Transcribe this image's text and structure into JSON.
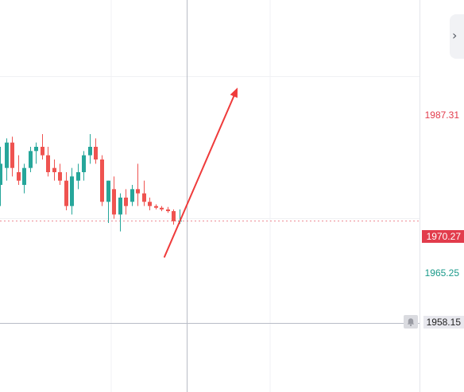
{
  "colors": {
    "up": "#26a69a",
    "down": "#ef5350",
    "arrow": "#ef3b3b",
    "current_price_bg": "#e23c4c",
    "high_label": "#e23c4c",
    "low_label": "#1a9a8a"
  },
  "price_scale": {
    "high_label": "1987.31",
    "current_price": "1970.27",
    "low_label": "1965.25",
    "crosshair_price": "1958.15"
  },
  "sidebar_toggle": {
    "icon": "chevron-right-icon",
    "glyph": "›"
  },
  "alarm_icon": "bell-icon",
  "chart_data": {
    "type": "candlestick",
    "ylim": [
      1952.0,
      1994.0
    ],
    "current_price": 1970.27,
    "crosshair_price": 1958.15,
    "arrow": {
      "from": 1966.0,
      "to": 1986.0
    },
    "candles": [
      {
        "o": 1974.5,
        "h": 1979.0,
        "l": 1972.0,
        "c": 1977.0
      },
      {
        "o": 1976.5,
        "h": 1980.0,
        "l": 1975.0,
        "c": 1979.5
      },
      {
        "o": 1979.5,
        "h": 1980.2,
        "l": 1975.5,
        "c": 1976.5
      },
      {
        "o": 1976.0,
        "h": 1978.0,
        "l": 1974.5,
        "c": 1975.0
      },
      {
        "o": 1974.5,
        "h": 1977.0,
        "l": 1973.5,
        "c": 1976.5
      },
      {
        "o": 1976.5,
        "h": 1979.0,
        "l": 1976.0,
        "c": 1978.5
      },
      {
        "o": 1978.5,
        "h": 1979.5,
        "l": 1977.0,
        "c": 1979.0
      },
      {
        "o": 1979.0,
        "h": 1980.5,
        "l": 1977.5,
        "c": 1978.0
      },
      {
        "o": 1978.0,
        "h": 1979.0,
        "l": 1975.5,
        "c": 1976.0
      },
      {
        "o": 1976.5,
        "h": 1977.5,
        "l": 1975.0,
        "c": 1976.0
      },
      {
        "o": 1976.0,
        "h": 1977.0,
        "l": 1974.5,
        "c": 1975.0
      },
      {
        "o": 1975.0,
        "h": 1976.0,
        "l": 1971.5,
        "c": 1972.0
      },
      {
        "o": 1972.0,
        "h": 1976.5,
        "l": 1971.0,
        "c": 1975.5
      },
      {
        "o": 1975.0,
        "h": 1977.0,
        "l": 1974.0,
        "c": 1976.0
      },
      {
        "o": 1976.0,
        "h": 1978.5,
        "l": 1975.0,
        "c": 1978.0
      },
      {
        "o": 1978.0,
        "h": 1980.5,
        "l": 1977.0,
        "c": 1979.0
      },
      {
        "o": 1979.0,
        "h": 1980.0,
        "l": 1977.0,
        "c": 1977.5
      },
      {
        "o": 1977.5,
        "h": 1978.0,
        "l": 1972.0,
        "c": 1972.5
      },
      {
        "o": 1972.5,
        "h": 1975.0,
        "l": 1970.0,
        "c": 1975.0
      },
      {
        "o": 1974.0,
        "h": 1975.5,
        "l": 1970.5,
        "c": 1971.0
      },
      {
        "o": 1971.0,
        "h": 1973.5,
        "l": 1969.0,
        "c": 1973.0
      },
      {
        "o": 1973.0,
        "h": 1974.0,
        "l": 1971.0,
        "c": 1972.0
      },
      {
        "o": 1972.5,
        "h": 1974.5,
        "l": 1972.0,
        "c": 1974.0
      },
      {
        "o": 1974.0,
        "h": 1977.0,
        "l": 1972.0,
        "c": 1973.5
      },
      {
        "o": 1973.5,
        "h": 1975.0,
        "l": 1972.0,
        "c": 1972.5
      },
      {
        "o": 1972.5,
        "h": 1973.0,
        "l": 1971.5,
        "c": 1972.0
      },
      {
        "o": 1972.0,
        "h": 1972.2,
        "l": 1971.6,
        "c": 1971.8
      },
      {
        "o": 1971.8,
        "h": 1972.0,
        "l": 1971.4,
        "c": 1971.6
      },
      {
        "o": 1971.6,
        "h": 1971.9,
        "l": 1971.2,
        "c": 1971.4
      },
      {
        "o": 1971.4,
        "h": 1971.6,
        "l": 1969.8,
        "c": 1970.2
      },
      {
        "o": 1970.2,
        "h": 1971.6,
        "l": 1969.9,
        "c": 1970.27
      }
    ]
  }
}
